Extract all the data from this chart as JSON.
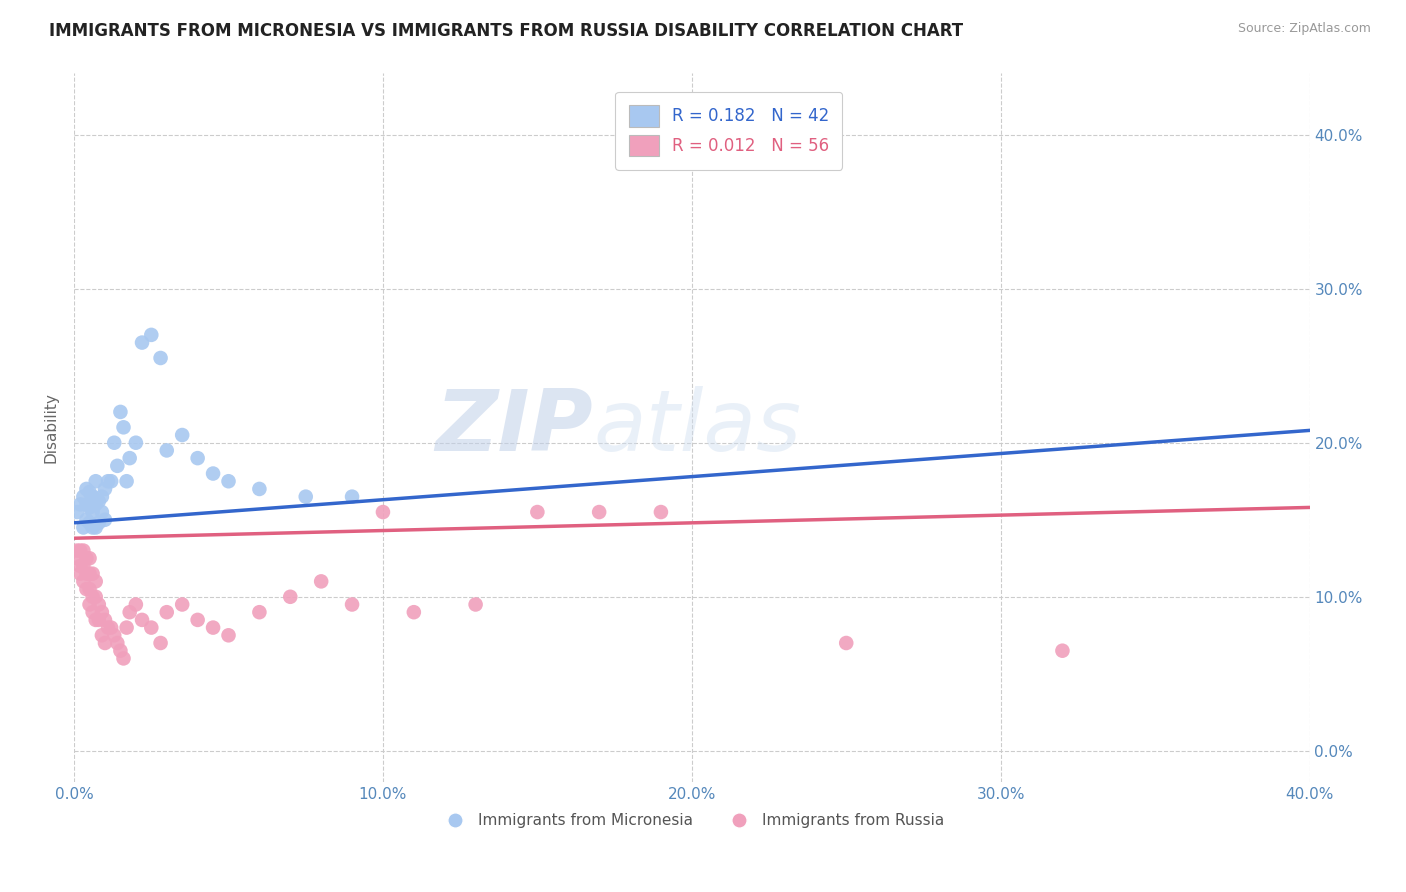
{
  "title": "IMMIGRANTS FROM MICRONESIA VS IMMIGRANTS FROM RUSSIA DISABILITY CORRELATION CHART",
  "source": "Source: ZipAtlas.com",
  "ylabel": "Disability",
  "micronesia_R": 0.182,
  "micronesia_N": 42,
  "russia_R": 0.012,
  "russia_N": 56,
  "blue_color": "#A8C8F0",
  "pink_color": "#F0A0BC",
  "blue_line_color": "#3366CC",
  "pink_line_color": "#E06080",
  "legend_blue_label": "Immigrants from Micronesia",
  "legend_pink_label": "Immigrants from Russia",
  "watermark_zip": "ZIP",
  "watermark_atlas": "atlas",
  "xlim": [
    0.0,
    0.4
  ],
  "ylim": [
    -0.02,
    0.44
  ],
  "x_ticks": [
    0.0,
    0.1,
    0.2,
    0.3,
    0.4
  ],
  "y_ticks": [
    0.0,
    0.1,
    0.2,
    0.3,
    0.4
  ],
  "micronesia_x": [
    0.001,
    0.002,
    0.003,
    0.003,
    0.004,
    0.004,
    0.004,
    0.005,
    0.005,
    0.005,
    0.006,
    0.006,
    0.006,
    0.007,
    0.007,
    0.007,
    0.008,
    0.008,
    0.009,
    0.009,
    0.01,
    0.01,
    0.011,
    0.012,
    0.013,
    0.014,
    0.015,
    0.016,
    0.017,
    0.018,
    0.02,
    0.022,
    0.025,
    0.028,
    0.03,
    0.035,
    0.04,
    0.045,
    0.05,
    0.06,
    0.075,
    0.09
  ],
  "micronesia_y": [
    0.155,
    0.16,
    0.145,
    0.165,
    0.15,
    0.16,
    0.17,
    0.148,
    0.158,
    0.168,
    0.145,
    0.155,
    0.165,
    0.145,
    0.16,
    0.175,
    0.148,
    0.162,
    0.155,
    0.165,
    0.15,
    0.17,
    0.175,
    0.175,
    0.2,
    0.185,
    0.22,
    0.21,
    0.175,
    0.19,
    0.2,
    0.265,
    0.27,
    0.255,
    0.195,
    0.205,
    0.19,
    0.18,
    0.175,
    0.17,
    0.165,
    0.165
  ],
  "russia_x": [
    0.001,
    0.001,
    0.002,
    0.002,
    0.002,
    0.003,
    0.003,
    0.003,
    0.004,
    0.004,
    0.004,
    0.005,
    0.005,
    0.005,
    0.005,
    0.006,
    0.006,
    0.006,
    0.007,
    0.007,
    0.007,
    0.008,
    0.008,
    0.009,
    0.009,
    0.01,
    0.01,
    0.011,
    0.012,
    0.013,
    0.014,
    0.015,
    0.016,
    0.017,
    0.018,
    0.02,
    0.022,
    0.025,
    0.028,
    0.03,
    0.035,
    0.04,
    0.045,
    0.05,
    0.06,
    0.07,
    0.08,
    0.09,
    0.1,
    0.11,
    0.13,
    0.15,
    0.17,
    0.19,
    0.25,
    0.32
  ],
  "russia_y": [
    0.125,
    0.13,
    0.115,
    0.12,
    0.13,
    0.11,
    0.12,
    0.13,
    0.105,
    0.115,
    0.125,
    0.095,
    0.105,
    0.115,
    0.125,
    0.09,
    0.1,
    0.115,
    0.085,
    0.1,
    0.11,
    0.085,
    0.095,
    0.075,
    0.09,
    0.07,
    0.085,
    0.08,
    0.08,
    0.075,
    0.07,
    0.065,
    0.06,
    0.08,
    0.09,
    0.095,
    0.085,
    0.08,
    0.07,
    0.09,
    0.095,
    0.085,
    0.08,
    0.075,
    0.09,
    0.1,
    0.11,
    0.095,
    0.155,
    0.09,
    0.095,
    0.155,
    0.155,
    0.155,
    0.07,
    0.065
  ]
}
